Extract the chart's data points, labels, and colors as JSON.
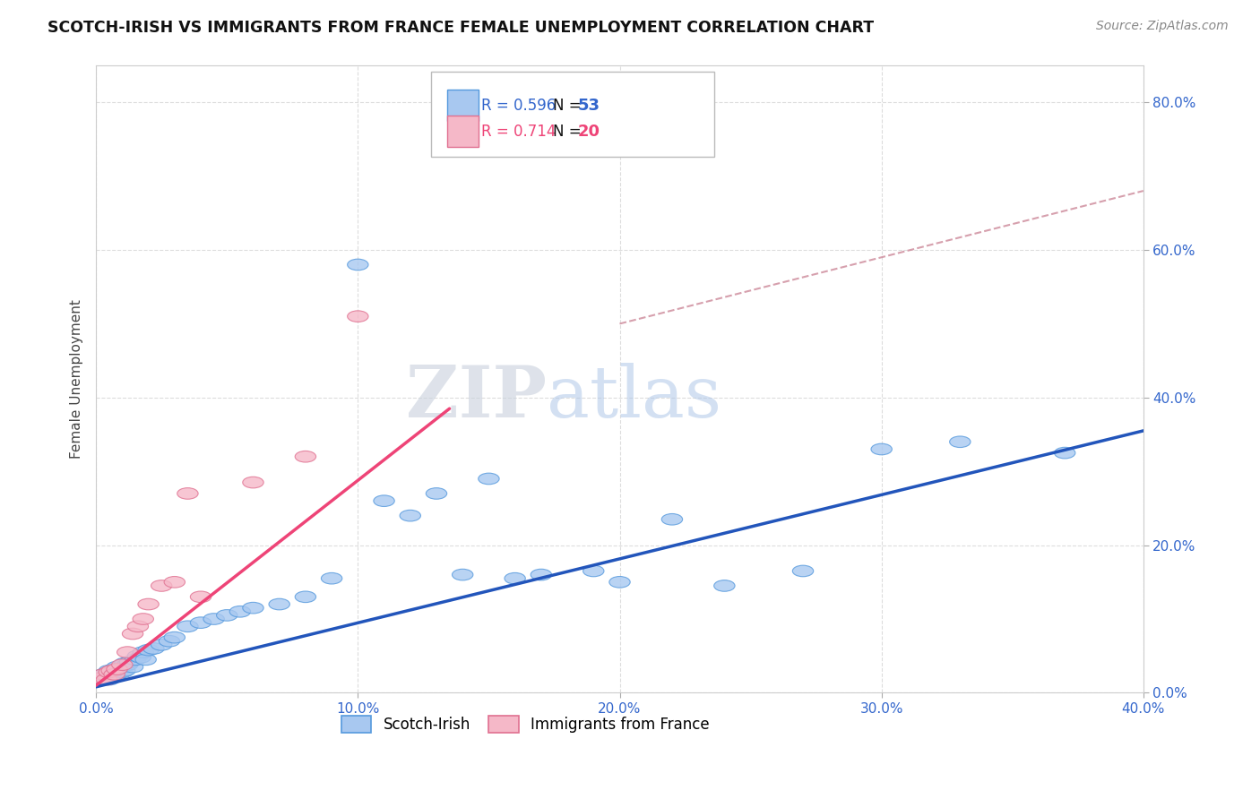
{
  "title": "SCOTCH-IRISH VS IMMIGRANTS FROM FRANCE FEMALE UNEMPLOYMENT CORRELATION CHART",
  "source": "Source: ZipAtlas.com",
  "ylabel": "Female Unemployment",
  "xlim": [
    0.0,
    0.4
  ],
  "ylim": [
    0.0,
    0.85
  ],
  "xticks": [
    0.0,
    0.1,
    0.2,
    0.3,
    0.4
  ],
  "yticks": [
    0.0,
    0.2,
    0.4,
    0.6,
    0.8
  ],
  "xticklabels": [
    "0.0%",
    "10.0%",
    "20.0%",
    "30.0%",
    "40.0%"
  ],
  "yticklabels": [
    "0.0%",
    "20.0%",
    "40.0%",
    "60.0%",
    "80.0%"
  ],
  "series1_name": "Scotch-Irish",
  "series1_color": "#A8C8F0",
  "series1_edge": "#5599DD",
  "series1_R": "0.596",
  "series1_N": "53",
  "series2_name": "Immigrants from France",
  "series2_color": "#F5B8C8",
  "series2_edge": "#E07090",
  "series2_R": "0.714",
  "series2_N": "20",
  "blue_line_color": "#2255BB",
  "pink_line_color": "#EE4477",
  "dashed_line_color": "#CC8899",
  "background_color": "#FFFFFF",
  "scatter1_x": [
    0.002,
    0.003,
    0.004,
    0.005,
    0.005,
    0.006,
    0.007,
    0.007,
    0.008,
    0.008,
    0.009,
    0.01,
    0.01,
    0.011,
    0.011,
    0.012,
    0.013,
    0.014,
    0.015,
    0.016,
    0.017,
    0.018,
    0.019,
    0.02,
    0.022,
    0.025,
    0.028,
    0.03,
    0.035,
    0.04,
    0.045,
    0.05,
    0.055,
    0.06,
    0.07,
    0.08,
    0.09,
    0.1,
    0.11,
    0.12,
    0.13,
    0.14,
    0.15,
    0.16,
    0.17,
    0.19,
    0.2,
    0.22,
    0.24,
    0.27,
    0.3,
    0.33,
    0.37
  ],
  "scatter1_y": [
    0.02,
    0.025,
    0.022,
    0.018,
    0.03,
    0.028,
    0.022,
    0.032,
    0.025,
    0.035,
    0.03,
    0.028,
    0.035,
    0.03,
    0.04,
    0.038,
    0.042,
    0.035,
    0.045,
    0.05,
    0.048,
    0.055,
    0.045,
    0.058,
    0.06,
    0.065,
    0.07,
    0.075,
    0.09,
    0.095,
    0.1,
    0.105,
    0.11,
    0.115,
    0.12,
    0.13,
    0.155,
    0.58,
    0.26,
    0.24,
    0.27,
    0.16,
    0.29,
    0.155,
    0.16,
    0.165,
    0.15,
    0.235,
    0.145,
    0.165,
    0.33,
    0.34,
    0.325
  ],
  "scatter2_x": [
    0.002,
    0.003,
    0.004,
    0.005,
    0.006,
    0.007,
    0.008,
    0.01,
    0.012,
    0.014,
    0.016,
    0.018,
    0.02,
    0.025,
    0.03,
    0.035,
    0.04,
    0.06,
    0.08,
    0.1
  ],
  "scatter2_y": [
    0.02,
    0.025,
    0.018,
    0.028,
    0.03,
    0.025,
    0.032,
    0.038,
    0.055,
    0.08,
    0.09,
    0.1,
    0.12,
    0.145,
    0.15,
    0.27,
    0.13,
    0.285,
    0.32,
    0.51
  ],
  "blue_line_x": [
    0.0,
    0.4
  ],
  "blue_line_y": [
    0.008,
    0.355
  ],
  "pink_line_x": [
    0.0,
    0.135
  ],
  "pink_line_y": [
    0.01,
    0.385
  ],
  "dash_line_x": [
    0.2,
    0.4
  ],
  "dash_line_y": [
    0.5,
    0.68
  ],
  "watermark_zip": "ZIP",
  "watermark_atlas": "atlas",
  "grid_color": "#DDDDDD"
}
